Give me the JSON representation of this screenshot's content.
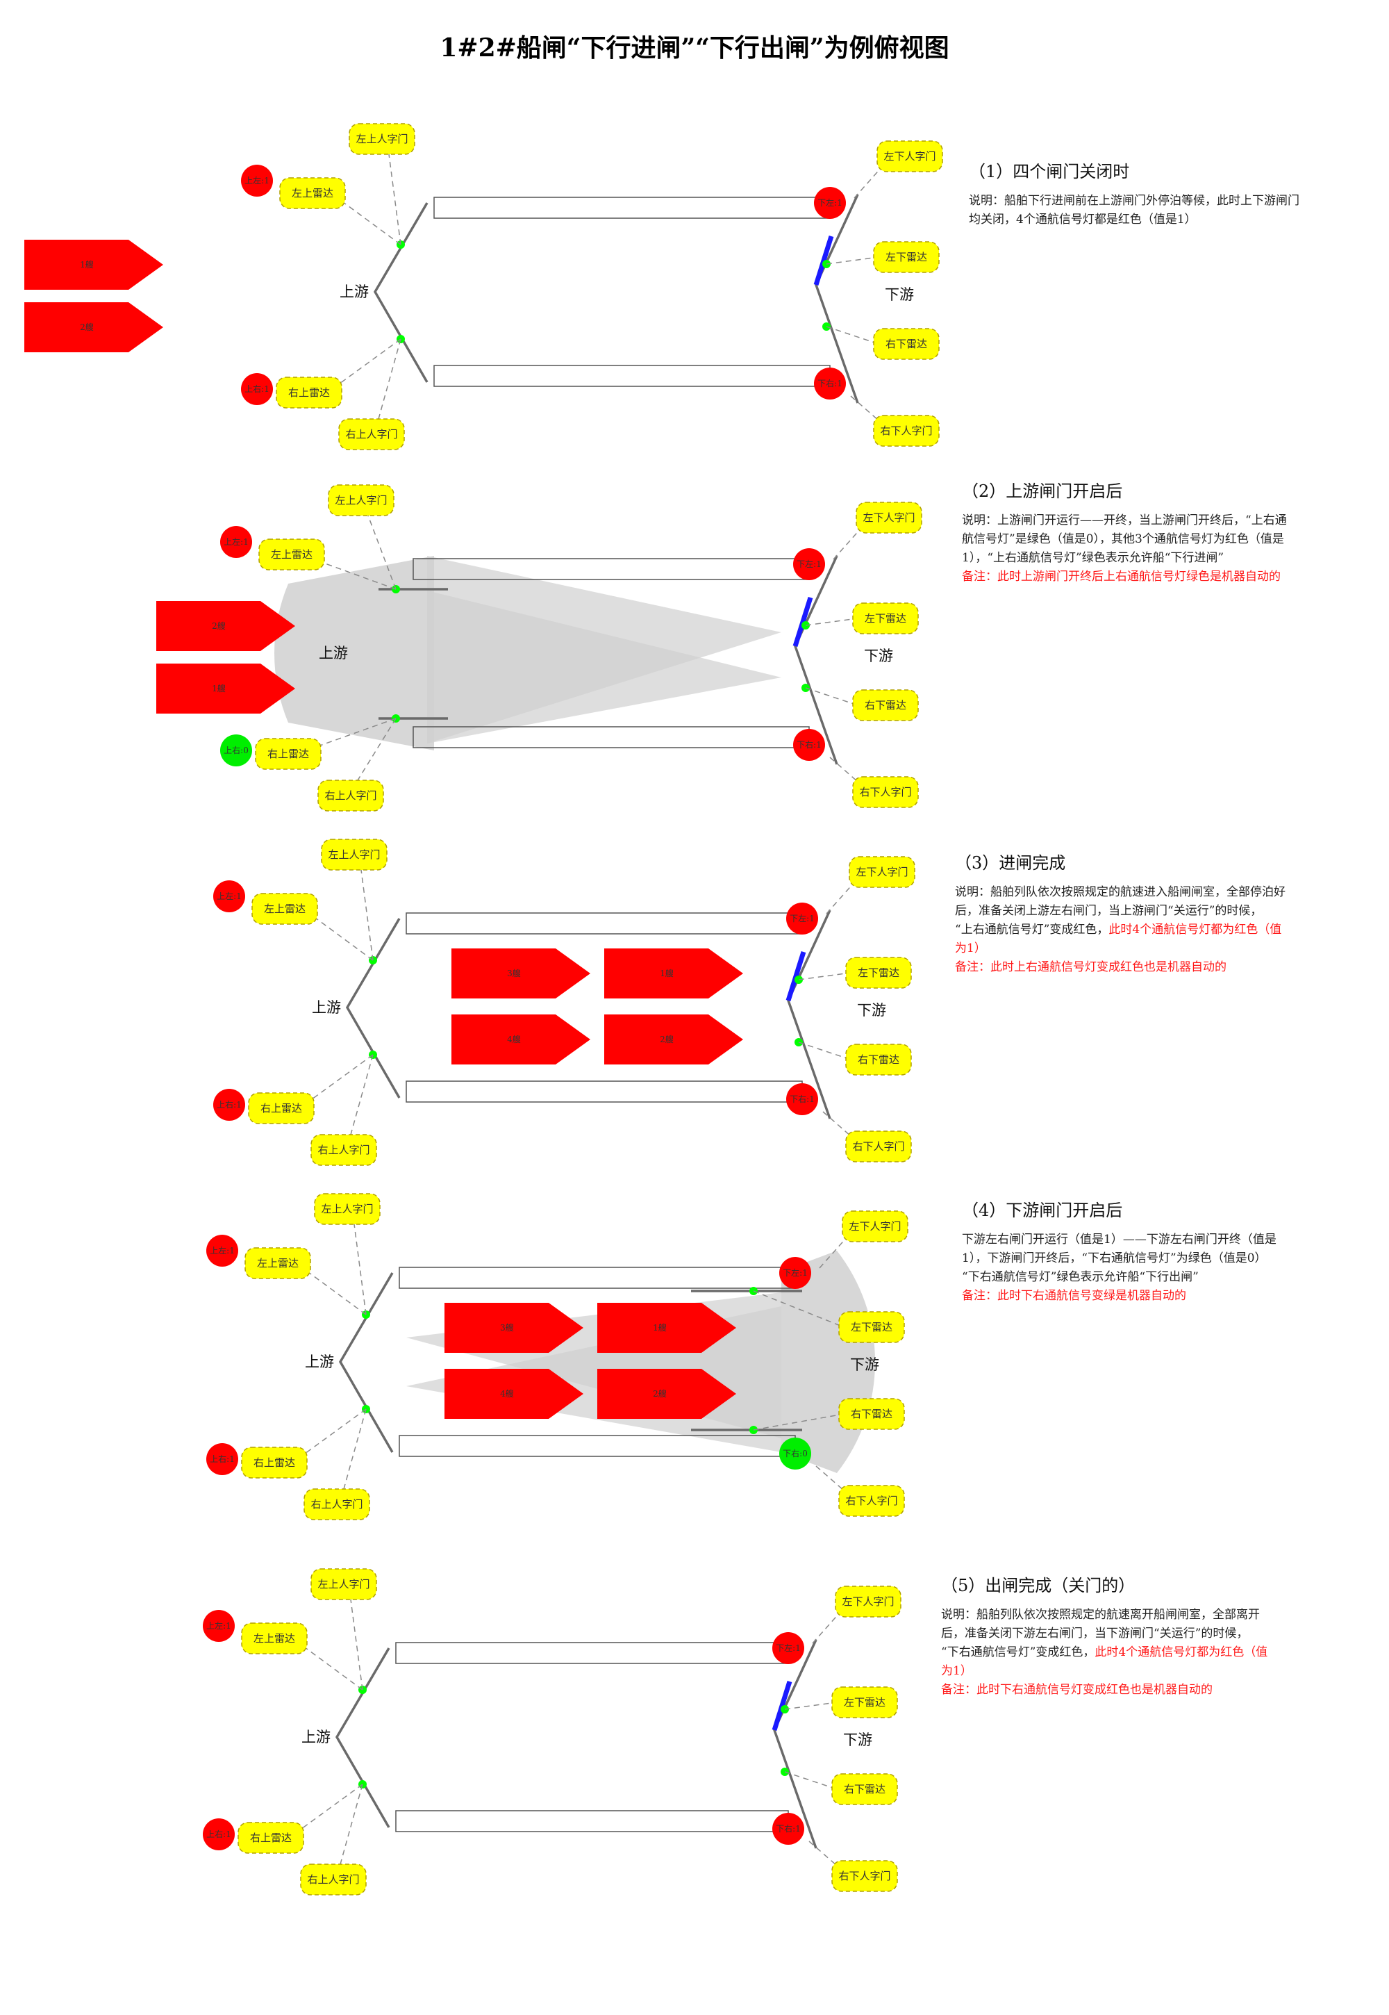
{
  "title": "1#2#船闸“下行进闸”“下行出闸”为例俯视图",
  "labels": {
    "upstream": "上游",
    "downstream": "下游",
    "left_up_gate": "左上人字门",
    "right_up_gate": "右上人字门",
    "left_down_gate": "左下人字门",
    "right_down_gate": "右下人字门",
    "left_up_radar": "左上雷达",
    "right_up_radar": "右上雷达",
    "left_down_radar": "左下雷达",
    "right_down_radar": "右下雷达",
    "light_ul": "上左:1",
    "light_ur_red": "上右:1",
    "light_ur_green": "上右:0",
    "light_dl": "下左:1",
    "light_dr_red": "下右:1",
    "light_dr_green": "下右:0",
    "ship1": "1艘",
    "ship2": "2艘",
    "ship3": "3艘",
    "ship4": "4艘"
  },
  "colors": {
    "light_red": "#ff0000",
    "light_green": "#00ee00",
    "badge_yellow": "#ffff00",
    "ship_red": "#ff0000",
    "blue_gate": "#1a1aff",
    "sensor_green": "#00ff00",
    "cone_gray": "#d0d0d0"
  },
  "panels": [
    {
      "heading": "（1）四个闸门关闭时",
      "lines": [
        {
          "text": "说明：船舶下行进闸前在上游闸门外停泊等候，此时上下游闸门",
          "red": false
        },
        {
          "text": "均关闭，4个通航信号灯都是红色（值是1）",
          "red": false
        }
      ]
    },
    {
      "heading": "（2）上游闸门开启后",
      "lines": [
        {
          "text": "说明：上游闸门开运行——开终，当上游闸门开终后，“上右通",
          "red": false
        },
        {
          "text": "航信号灯”是绿色（值是0），其他3个通航信号灯为红色（值是",
          "red": false
        },
        {
          "text": "1），“上右通航信号灯”绿色表示允许船“下行进闸”",
          "red": false
        },
        {
          "text": "备注：此时上游闸门开终后上右通航信号灯绿色是机器自动的",
          "red": true
        }
      ]
    },
    {
      "heading": "（3）进闸完成",
      "lines": [
        {
          "text": "说明：船舶列队依次按照规定的航速进入船闸闸室，全部停泊好",
          "red": false
        },
        {
          "text": "后，准备关闭上游左右闸门，当上游闸门“关运行”的时候，",
          "red": false
        },
        {
          "text": "“上右通航信号灯”变成红色，此时4个通航信号灯都为红色（值",
          "red": false,
          "red_from": "此时4个通航信号灯都为红色（值"
        },
        {
          "text": "为1）",
          "red": true
        },
        {
          "text": "备注：此时上右通航信号灯变成红色也是机器自动的",
          "red": true
        }
      ]
    },
    {
      "heading": "（4）下游闸门开启后",
      "lines": [
        {
          "text": "下游左右闸门开运行（值是1）——下游左右闸门开终（值是",
          "red": false
        },
        {
          "text": "1），下游闸门开终后，“下右通航信号灯”为绿色（值是0）",
          "red": false
        },
        {
          "text": "“下右通航信号灯”绿色表示允许船“下行出闸”",
          "red": false
        },
        {
          "text": "备注：此时下右通航信号变绿是机器自动的",
          "red": true
        }
      ]
    },
    {
      "heading": "（5）出闸完成（关门的）",
      "lines": [
        {
          "text": "说明：船舶列队依次按照规定的航速离开船闸闸室，全部离开",
          "red": false
        },
        {
          "text": "后，准备关闭下游左右闸门，当下游闸门“关运行”的时候，",
          "red": false
        },
        {
          "text": "“下右通航信号灯”变成红色，此时4个通航信号灯都为红色（值",
          "red": false,
          "red_from": "此时4个通航信号灯都为红色（值"
        },
        {
          "text": "为1）",
          "red": true
        },
        {
          "text": "备注：此时下右通航信号灯变成红色也是机器自动的",
          "red": true
        }
      ]
    }
  ]
}
